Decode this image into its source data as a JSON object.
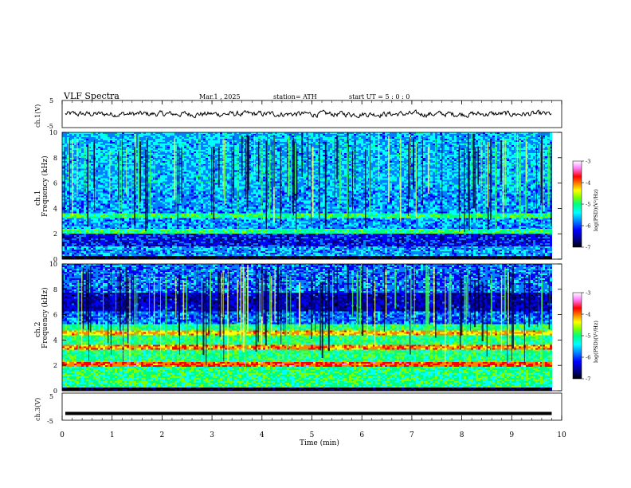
{
  "header": {
    "title": "VLF  Spectra",
    "date": "Mar.1  , 2025",
    "station": "station= ATH",
    "start": "start  UT  =    5  : 0   : 0"
  },
  "colors": {
    "colormap": [
      "#000000",
      "#00007a",
      "#0000ff",
      "#0080ff",
      "#00ffff",
      "#00ff80",
      "#80ff00",
      "#ffff00",
      "#ff8000",
      "#ff0000",
      "#ff80ff",
      "#ffffff"
    ],
    "waveform": "#000000"
  },
  "chart_data": [
    {
      "type": "line",
      "name": "ch1-waveform",
      "ylabel": "ch.1(V)",
      "ylim": [
        -5,
        5
      ],
      "yticks": [
        "5",
        "-5"
      ],
      "xlim": [
        0,
        10
      ],
      "description_values": {
        "mean": 0,
        "amplitude_approx": 1
      }
    },
    {
      "type": "heatmap",
      "name": "ch1-spectrogram",
      "ylabel_1": "ch.1",
      "ylabel_2": "Frequency  (kHz)",
      "ylim": [
        0,
        10
      ],
      "yticks": [
        "0",
        "2",
        "4",
        "6",
        "8",
        "10"
      ],
      "xlim": [
        0,
        9.8
      ],
      "colorbar": {
        "label": "log(PSD)(V²/Hz)",
        "range": [
          -7,
          -3
        ],
        "ticks": [
          "-3",
          "-4",
          "-5",
          "-6",
          "-7"
        ]
      }
    },
    {
      "type": "heatmap",
      "name": "ch2-spectrogram",
      "ylabel_1": "ch.2",
      "ylabel_2": "Frequency  (kHz)",
      "ylim": [
        0,
        10
      ],
      "yticks": [
        "0",
        "2",
        "4",
        "6",
        "8",
        "10"
      ],
      "xlim": [
        0,
        9.8
      ],
      "colorbar": {
        "label": "log(PSD)(V²/Hz)",
        "range": [
          -7,
          -3
        ],
        "ticks": [
          "-3",
          "-4",
          "-5",
          "-6",
          "-7"
        ]
      }
    },
    {
      "type": "line",
      "name": "ch3-waveform",
      "ylabel": "ch.3(V)",
      "ylim": [
        -5,
        5
      ],
      "yticks": [
        "5",
        "-5"
      ],
      "xlim": [
        0,
        10
      ],
      "description_values": {
        "level": -2.5
      }
    }
  ],
  "xaxis": {
    "label": "Time  (min)",
    "ticks": [
      "0",
      "1",
      "2",
      "3",
      "4",
      "5",
      "6",
      "7",
      "8",
      "9",
      "10"
    ],
    "range": [
      0,
      10
    ]
  }
}
